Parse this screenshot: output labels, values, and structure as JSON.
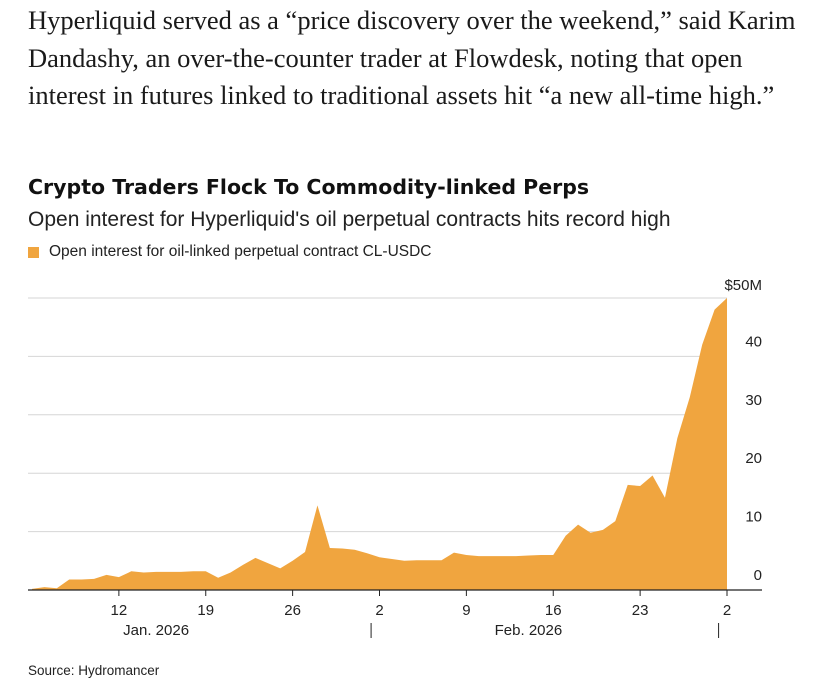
{
  "article": {
    "paragraph": "Hyperliquid served as a “price discovery over the weekend,” said Karim Dandashy, an over-the-counter trader at Flowdesk, noting that open interest in futures linked to traditional assets hit “a new all-time high.”"
  },
  "chart_data": {
    "type": "area",
    "title": "Crypto Traders Flock To Commodity-linked Perps",
    "subtitle": "Open interest for Hyperliquid's oil perpetual contracts hits record high",
    "legend": "Open interest for oil-linked perpetual contract CL-USDC",
    "legend_placement": "top-left",
    "xlabel": "",
    "ylabel": "",
    "ylim": [
      0,
      50
    ],
    "yticks": [
      0,
      10,
      20,
      30,
      40,
      50
    ],
    "ytick_labels": [
      "0",
      "10",
      "20",
      "30",
      "40",
      "$50M"
    ],
    "grid": true,
    "color": "#f0a53f",
    "x_tick_labels": [
      "12",
      "19",
      "26",
      "2",
      "9",
      "16",
      "23",
      "2"
    ],
    "x_tick_dates": [
      "2026-01-12",
      "2026-01-19",
      "2026-01-26",
      "2026-02-02",
      "2026-02-09",
      "2026-02-16",
      "2026-02-23",
      "2026-03-02"
    ],
    "month_labels": [
      {
        "label": "Jan. 2026",
        "date": "2026-01-15"
      },
      {
        "label": "Feb. 2026",
        "date": "2026-02-14"
      }
    ],
    "month_separators": [
      "2026-02-01",
      "2026-03-01"
    ],
    "x": [
      "2026-01-05",
      "2026-01-06",
      "2026-01-07",
      "2026-01-08",
      "2026-01-09",
      "2026-01-10",
      "2026-01-11",
      "2026-01-12",
      "2026-01-13",
      "2026-01-14",
      "2026-01-15",
      "2026-01-16",
      "2026-01-17",
      "2026-01-18",
      "2026-01-19",
      "2026-01-20",
      "2026-01-21",
      "2026-01-22",
      "2026-01-23",
      "2026-01-24",
      "2026-01-25",
      "2026-01-26",
      "2026-01-27",
      "2026-01-28",
      "2026-01-29",
      "2026-01-30",
      "2026-01-31",
      "2026-02-01",
      "2026-02-02",
      "2026-02-03",
      "2026-02-04",
      "2026-02-05",
      "2026-02-06",
      "2026-02-07",
      "2026-02-08",
      "2026-02-09",
      "2026-02-10",
      "2026-02-11",
      "2026-02-12",
      "2026-02-13",
      "2026-02-14",
      "2026-02-15",
      "2026-02-16",
      "2026-02-17",
      "2026-02-18",
      "2026-02-19",
      "2026-02-20",
      "2026-02-21",
      "2026-02-22",
      "2026-02-23",
      "2026-02-24",
      "2026-02-25",
      "2026-02-26",
      "2026-02-27",
      "2026-02-28",
      "2026-03-01",
      "2026-03-02"
    ],
    "series": [
      {
        "values": [
          0.2,
          0.5,
          0.3,
          1.8,
          1.8,
          1.9,
          2.6,
          2.2,
          3.2,
          3.0,
          3.1,
          3.1,
          3.1,
          3.2,
          3.2,
          2.1,
          3.0,
          4.3,
          5.5,
          4.6,
          3.7,
          5.0,
          6.5,
          14.5,
          7.2,
          7.1,
          6.9,
          6.3,
          5.6,
          5.3,
          5.0,
          5.1,
          5.1,
          5.1,
          6.4,
          6.0,
          5.8,
          5.8,
          5.8,
          5.8,
          5.9,
          6.0,
          6.0,
          9.3,
          11.2,
          9.8,
          10.3,
          11.8,
          18.0,
          17.8,
          19.6,
          15.8,
          26.0,
          33.0,
          42.0,
          48.0,
          50.0
        ]
      }
    ],
    "source": "Source: Hydromancer"
  }
}
